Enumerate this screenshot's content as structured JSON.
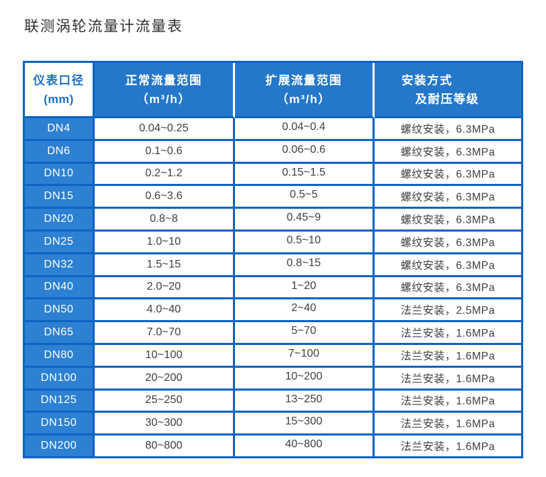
{
  "page": {
    "title": "联测涡轮流量计流量表"
  },
  "table": {
    "headers": [
      {
        "line1": "仪表口径",
        "line2": "(mm)"
      },
      {
        "line1": "正常流量范围",
        "line2": "（m³/h）"
      },
      {
        "line1": "扩展流量范围",
        "line2": "（m³/h）"
      },
      {
        "line1": "安装方式",
        "line2": "及耐压等级"
      }
    ],
    "rows": [
      {
        "dn": "DN4",
        "normal_range": "0.04~0.25",
        "extended_range": "0.04~0.4",
        "install": "螺纹安装，6.3MPa"
      },
      {
        "dn": "DN6",
        "normal_range": "0.1~0.6",
        "extended_range": "0.06~0.6",
        "install": "螺纹安装，6.3MPa"
      },
      {
        "dn": "DN10",
        "normal_range": "0.2~1.2",
        "extended_range": "0.15~1.5",
        "install": "螺纹安装，6.3MPa"
      },
      {
        "dn": "DN15",
        "normal_range": "0.6~3.6",
        "extended_range": "0.5~5",
        "install": "螺纹安装，6.3MPa"
      },
      {
        "dn": "DN20",
        "normal_range": "0.8~8",
        "extended_range": "0.45~9",
        "install": "螺纹安装，6.3MPa"
      },
      {
        "dn": "DN25",
        "normal_range": "1.0~10",
        "extended_range": "0.5~10",
        "install": "螺纹安装，6.3MPa"
      },
      {
        "dn": "DN32",
        "normal_range": "1.5~15",
        "extended_range": "0.8~15",
        "install": "螺纹安装，6.3MPa"
      },
      {
        "dn": "DN40",
        "normal_range": "2.0~20",
        "extended_range": "1~20",
        "install": "螺纹安装，6.3MPa"
      },
      {
        "dn": "DN50",
        "normal_range": "4.0~40",
        "extended_range": "2~40",
        "install": "法兰安装，2.5MPa"
      },
      {
        "dn": "DN65",
        "normal_range": "7.0~70",
        "extended_range": "5~70",
        "install": "法兰安装，1.6MPa"
      },
      {
        "dn": "DN80",
        "normal_range": "10~100",
        "extended_range": "7~100",
        "install": "法兰安装，1.6MPa"
      },
      {
        "dn": "DN100",
        "normal_range": "20~200",
        "extended_range": "10~200",
        "install": "法兰安装，1.6MPa"
      },
      {
        "dn": "DN125",
        "normal_range": "25~250",
        "extended_range": "13~250",
        "install": "法兰安装，1.6MPa"
      },
      {
        "dn": "DN150",
        "normal_range": "30~300",
        "extended_range": "15~300",
        "install": "法兰安装，1.6MPa"
      },
      {
        "dn": "DN200",
        "normal_range": "80~800",
        "extended_range": "40~800",
        "install": "法兰安装，1.6MPa"
      }
    ]
  },
  "colors": {
    "border_blue": "#0e63c2",
    "header_bg": "#2577c9",
    "dn_cell_bg": "#2d80d2",
    "header_text": "#ffffff",
    "diameter_header_text": "#1e70c5",
    "data_text": "#3f3f3f",
    "title_text": "#303030"
  }
}
